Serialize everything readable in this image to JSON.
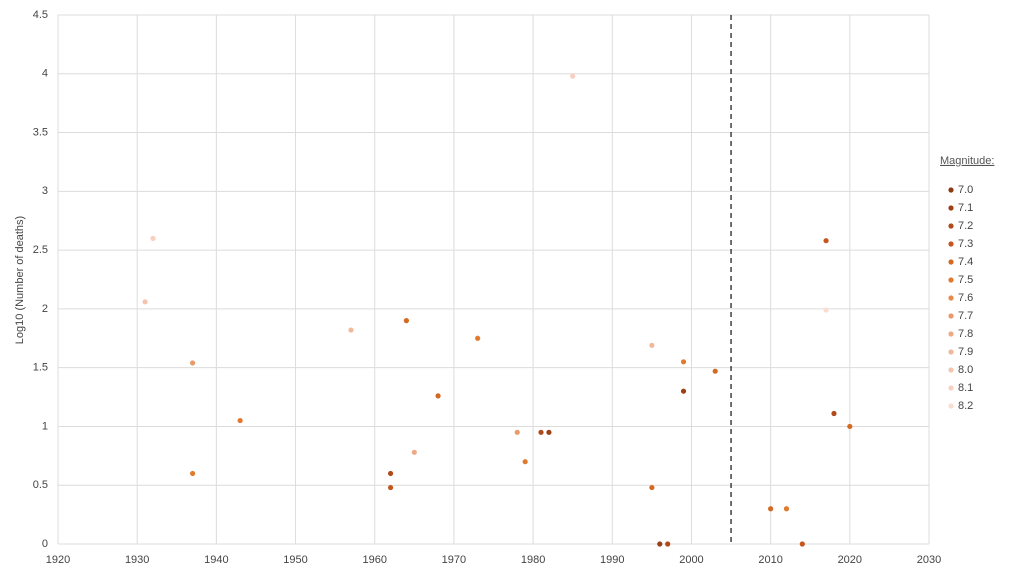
{
  "chart_data": {
    "type": "scatter",
    "y_label": "Log10 (Number of deaths)",
    "legend_title": "Magnitude:",
    "legend_position": "right",
    "grid": true,
    "xlim": [
      1920,
      2030
    ],
    "xticks": [
      1920,
      1930,
      1940,
      1950,
      1960,
      1970,
      1980,
      1990,
      2000,
      2010,
      2020,
      2030
    ],
    "ylim": [
      0,
      4.5
    ],
    "yticks": [
      0,
      0.5,
      1,
      1.5,
      2,
      2.5,
      3,
      3.5,
      4,
      4.5
    ],
    "vline": 2005,
    "series": [
      {
        "name": "7.0",
        "color": "#8a3b12",
        "x": [],
        "values": []
      },
      {
        "name": "7.1",
        "color": "#9c4015",
        "x": [
          1982,
          1996,
          1999
        ],
        "values": [
          0.95,
          0,
          1.3
        ]
      },
      {
        "name": "7.2",
        "color": "#b04a1a",
        "x": [
          1962,
          1981,
          1997,
          2018
        ],
        "values": [
          0.6,
          0.95,
          0,
          1.11
        ]
      },
      {
        "name": "7.3",
        "color": "#c4561e",
        "x": [
          1962,
          2014,
          2017
        ],
        "values": [
          0.48,
          0,
          2.58
        ]
      },
      {
        "name": "7.4",
        "color": "#d46a22",
        "x": [
          1964,
          1968,
          1995,
          2003,
          2010,
          2020
        ],
        "values": [
          1.9,
          1.26,
          0.48,
          1.47,
          0.3,
          1
        ]
      },
      {
        "name": "7.5",
        "color": "#e07a2f",
        "x": [
          1937,
          1943,
          1973,
          1979,
          1999,
          2012
        ],
        "values": [
          0.6,
          1.05,
          1.75,
          0.7,
          1.55,
          0.3
        ]
      },
      {
        "name": "7.6",
        "color": "#e68a4a",
        "x": [],
        "values": []
      },
      {
        "name": "7.7",
        "color": "#ea9a6a",
        "x": [
          1937,
          1978
        ],
        "values": [
          1.54,
          0.95
        ]
      },
      {
        "name": "7.8",
        "color": "#eeaa85",
        "x": [
          1965
        ],
        "values": [
          0.78
        ]
      },
      {
        "name": "7.9",
        "color": "#f2b89c",
        "x": [
          1957,
          1995
        ],
        "values": [
          1.82,
          1.69
        ]
      },
      {
        "name": "8.0",
        "color": "#f5c4ae",
        "x": [
          1931
        ],
        "values": [
          2.06
        ]
      },
      {
        "name": "8.1",
        "color": "#f8d0c0",
        "x": [
          1932,
          1985
        ],
        "values": [
          2.6,
          3.98
        ]
      },
      {
        "name": "8.2",
        "color": "#fbdcd0",
        "x": [
          2017
        ],
        "values": [
          1.99
        ]
      }
    ]
  }
}
